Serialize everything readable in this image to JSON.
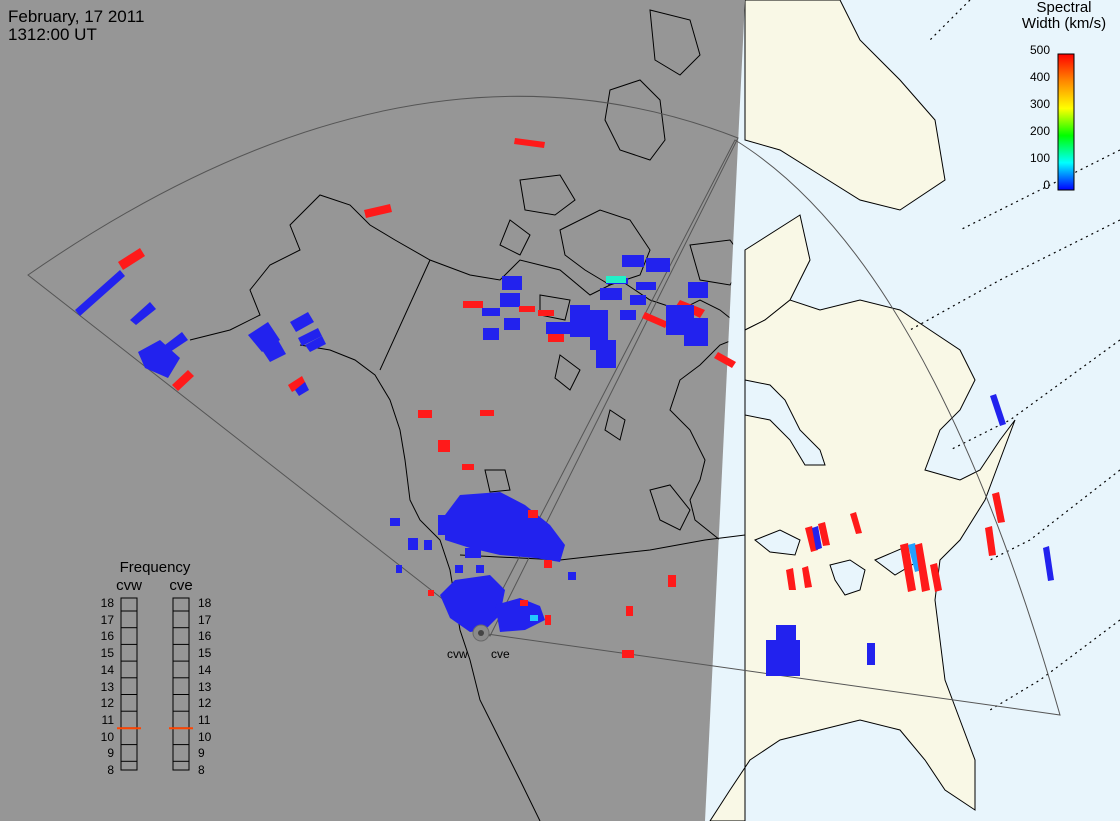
{
  "header": {
    "date": "February, 17 2011",
    "time": "1312:00 UT"
  },
  "colors": {
    "night": "#969696",
    "day_land": "#f9f8e6",
    "day_ocean": "#e8f5fc",
    "scatter_low": "#2222ee",
    "scatter_high": "#ff1a1a",
    "scatter_mid": "#22c8ff"
  },
  "radars": [
    {
      "id": "cvw",
      "label": "cvw"
    },
    {
      "id": "cve",
      "label": "cve"
    }
  ],
  "spectral_legend": {
    "title_line1": "Spectral",
    "title_line2": "Width (km/s)",
    "ticks": [
      "500",
      "400",
      "300",
      "200",
      "100",
      "0"
    ],
    "range": [
      0,
      500
    ]
  },
  "frequency_legend": {
    "title": "Frequency",
    "columns": [
      {
        "label": "cvw",
        "value": 10.5
      },
      {
        "label": "cve",
        "value": 10.5
      }
    ],
    "ticks": [
      "18",
      "17",
      "16",
      "15",
      "14",
      "13",
      "12",
      "11",
      "10",
      "9",
      "8"
    ],
    "range": [
      8,
      18
    ]
  }
}
